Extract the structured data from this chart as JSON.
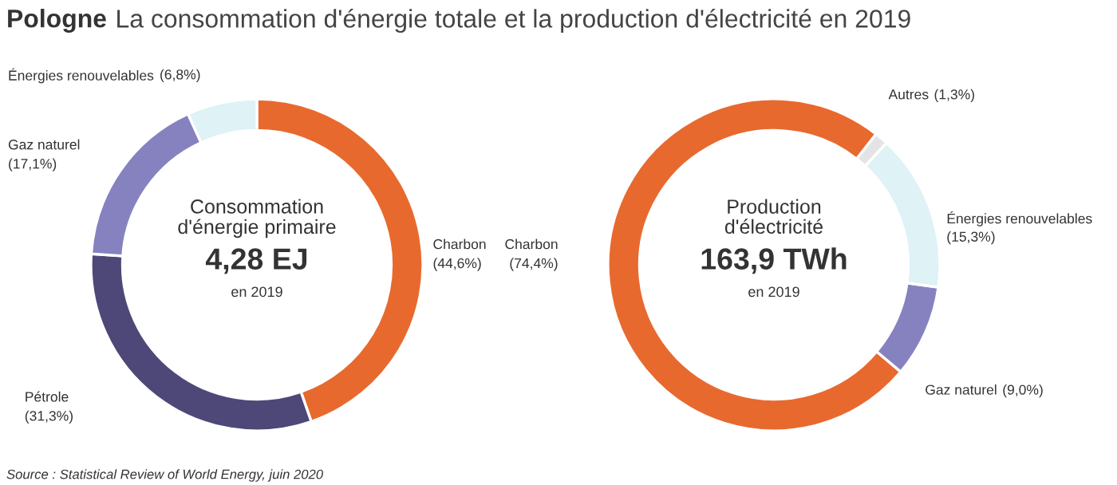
{
  "chart_data": [
    {
      "type": "donut",
      "title": "Pologne",
      "subtitle": "La consommation d'énergie totale et la production d'électricité en 2019",
      "categories": [
        "Charbon",
        "Pétrole",
        "Gaz naturel",
        "Énergies renouvelables"
      ],
      "values": [
        44.6,
        31.3,
        17.1,
        6.8
      ],
      "colors": [
        "#e8692e",
        "#4d4878",
        "#8682c0",
        "#dff2f6"
      ],
      "value_labels": [
        "(44,6%)",
        "(31,3%)",
        "(17,1%)",
        "(6,8%)"
      ],
      "annotations": [
        "Consommation\nd'énergie primaire",
        "4,28 EJ",
        "en 2019",
        "Source : Statistical Review of World Energy, juin 2020"
      ]
    },
    {
      "type": "donut",
      "categories": [
        "Charbon",
        "Gaz naturel",
        "Énergies renouvelables",
        "Autres"
      ],
      "values": [
        74.4,
        9.0,
        15.3,
        1.3
      ],
      "colors": [
        "#e8692e",
        "#8682c0",
        "#dff2f6",
        "#e4e4e4"
      ],
      "value_labels": [
        "(74,4%)",
        "(9,0%)",
        "(15,3%)",
        "(1,3%)"
      ],
      "annotations": [
        "Production\nd'électricité",
        "163,9 TWh",
        "en 2019"
      ]
    }
  ]
}
